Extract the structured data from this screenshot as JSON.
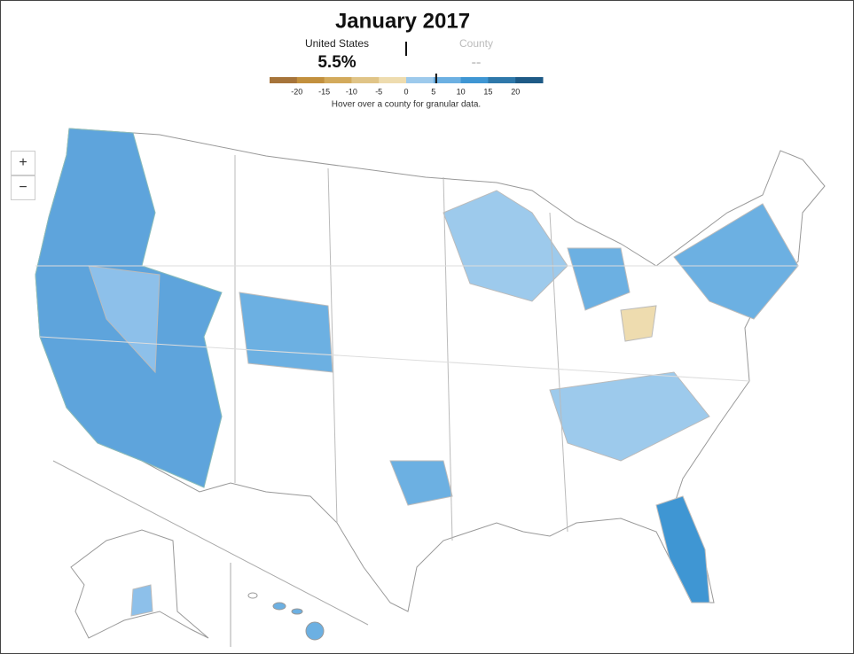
{
  "title": "January 2017",
  "summary": {
    "us_label": "United States",
    "us_value": {
      "value": 5.5,
      "label": "5.5%"
    },
    "county_label": "County",
    "county_value": "--"
  },
  "legend": {
    "lim": [
      -25,
      25
    ],
    "ticks": [
      -20,
      -15,
      -10,
      -5,
      0,
      5,
      10,
      15,
      20
    ],
    "colors": [
      "#a6743a",
      "#c2903e",
      "#d3aa5c",
      "#e0c487",
      "#eedcaf",
      "#9dcaec",
      "#6cb0e2",
      "#3f96d3",
      "#2f78aa",
      "#1e5a86"
    ],
    "note": "Hover over a county for granular data."
  },
  "zoom": {
    "in": "+",
    "out": "−"
  }
}
